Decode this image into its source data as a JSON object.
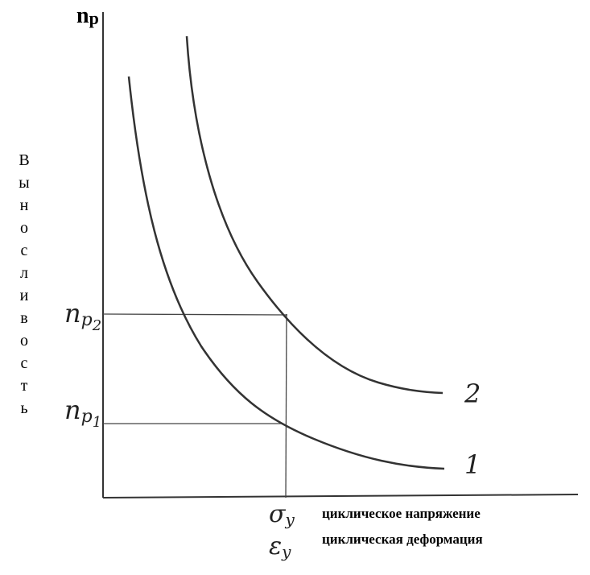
{
  "y_axis": {
    "symbol": "n",
    "subscript": "p",
    "title": "Выносливость"
  },
  "y_marks": [
    {
      "symbol": "n",
      "subscript": "p",
      "index": "2"
    },
    {
      "symbol": "n",
      "subscript": "p",
      "index": "1"
    }
  ],
  "x_marks": [
    {
      "symbol": "σ",
      "subscript": "y",
      "label": "циклическое напряжение"
    },
    {
      "symbol": "ε",
      "subscript": "y",
      "label": "циклическая деформация"
    }
  ],
  "curves": [
    {
      "label": "1"
    },
    {
      "label": "2"
    }
  ]
}
